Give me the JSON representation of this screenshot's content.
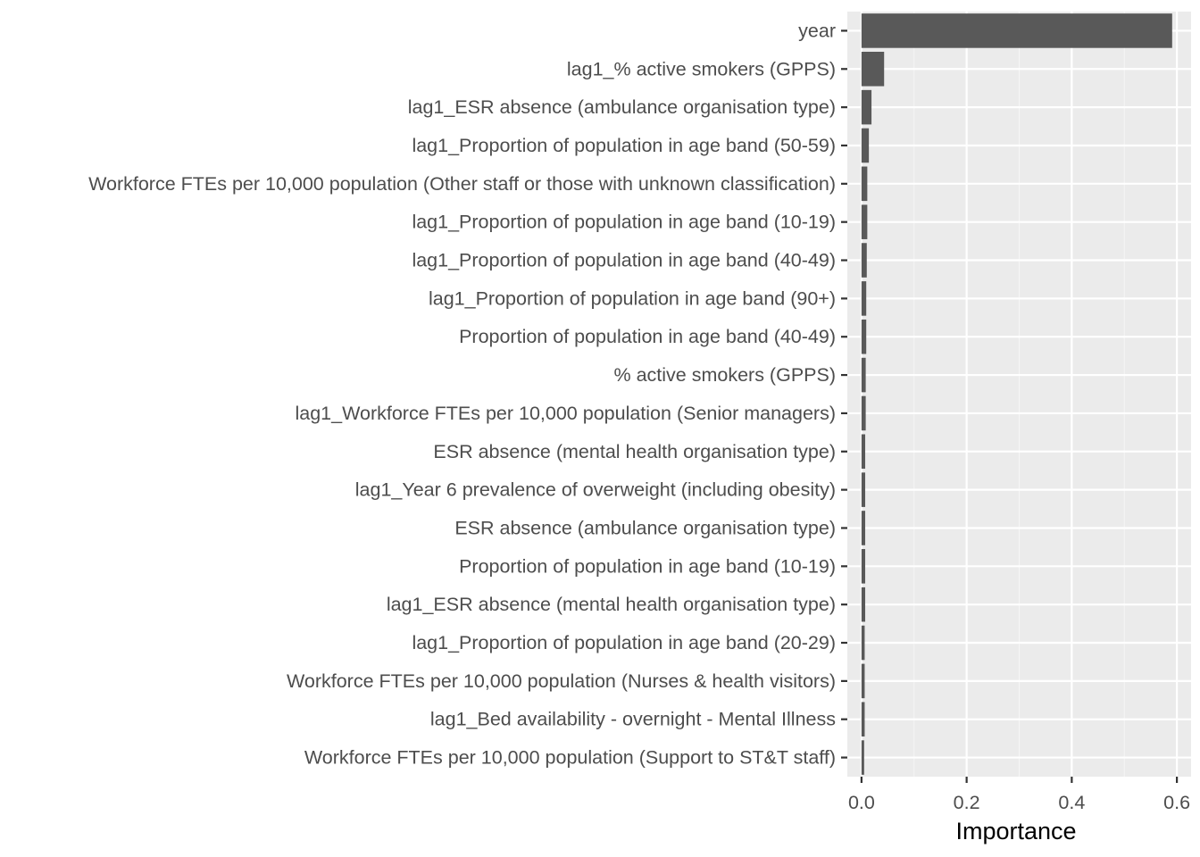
{
  "chart_data": {
    "type": "bar",
    "orientation": "horizontal",
    "title": "",
    "xlabel": "Importance",
    "ylabel": "",
    "xlim": [
      -0.027,
      0.627
    ],
    "x_ticks": [
      {
        "value": 0.0,
        "label": "0.0"
      },
      {
        "value": 0.2,
        "label": "0.2"
      },
      {
        "value": 0.4,
        "label": "0.4"
      },
      {
        "value": 0.6,
        "label": "0.6"
      }
    ],
    "grid": true,
    "legend": "none",
    "colors": {
      "panel_background": "#ebebeb",
      "grid_major": "#ffffff",
      "grid_minor": "#f5f5f5",
      "bar_fill": "#595959"
    },
    "categories": [
      "year",
      "lag1_% active smokers (GPPS)",
      "lag1_ESR absence (ambulance organisation type)",
      "lag1_Proportion of population in age band (50-59)",
      "Workforce FTEs per 10,000 population (Other staff or those with unknown classification)",
      "lag1_Proportion of population in age band (10-19)",
      "lag1_Proportion of population in age band (40-49)",
      "lag1_Proportion of population in age band (90+)",
      "Proportion of population in age band (40-49)",
      "% active smokers (GPPS)",
      "lag1_Workforce FTEs per 10,000 population (Senior managers)",
      "ESR absence (mental health organisation type)",
      "lag1_Year 6 prevalence of overweight (including obesity)",
      "ESR absence (ambulance organisation type)",
      "Proportion of population in age band (10-19)",
      "lag1_ESR absence (mental health organisation type)",
      "lag1_Proportion of population in age band (20-29)",
      "Workforce FTEs per 10,000 population (Nurses & health visitors)",
      "lag1_Bed availability - overnight - Mental Illness",
      "Workforce FTEs per 10,000 population (Support to ST&T staff)"
    ],
    "values": [
      0.591,
      0.043,
      0.019,
      0.014,
      0.011,
      0.011,
      0.01,
      0.009,
      0.009,
      0.008,
      0.008,
      0.007,
      0.007,
      0.007,
      0.007,
      0.007,
      0.006,
      0.006,
      0.006,
      0.005
    ]
  }
}
